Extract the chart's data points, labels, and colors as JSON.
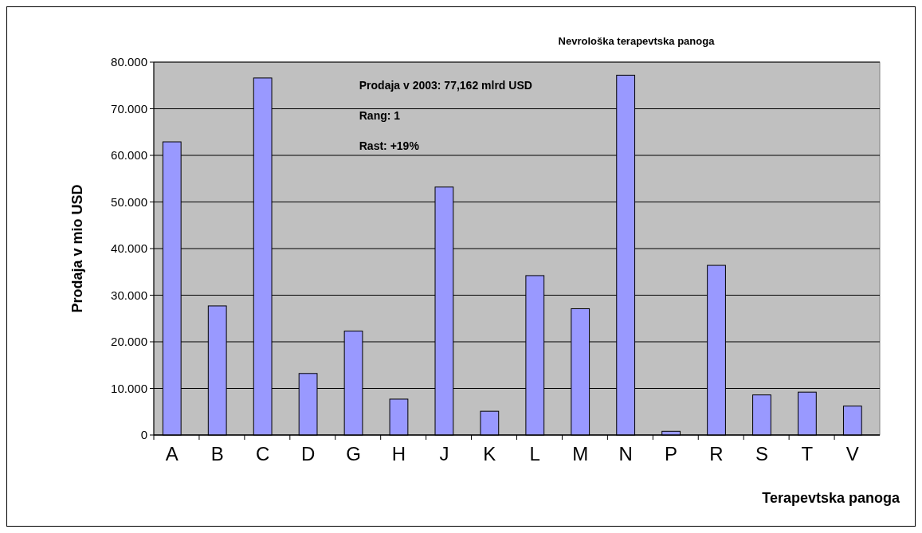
{
  "chart_data": {
    "type": "bar",
    "title": "Nevrološka terapevtska panoga",
    "xlabel": "Terapevtska panoga",
    "ylabel": "Prodaja v mio USD",
    "annotations": [
      "Prodaja v 2003: 77,162 mlrd USD",
      "Rang: 1",
      "Rast: +19%"
    ],
    "categories": [
      "A",
      "B",
      "C",
      "D",
      "G",
      "H",
      "J",
      "K",
      "L",
      "M",
      "N",
      "P",
      "R",
      "S",
      "T",
      "V"
    ],
    "values": [
      62900,
      27700,
      76600,
      13200,
      22300,
      7700,
      53200,
      5100,
      34200,
      27100,
      77200,
      800,
      36400,
      8600,
      9200,
      6200
    ],
    "color": "#9999ff",
    "ylim": [
      0,
      80000
    ],
    "yticks": [
      {
        "value": 0,
        "label": "0"
      },
      {
        "value": 10000,
        "label": "10.000"
      },
      {
        "value": 20000,
        "label": "20.000"
      },
      {
        "value": 30000,
        "label": "30.000"
      },
      {
        "value": 40000,
        "label": "40.000"
      },
      {
        "value": 50000,
        "label": "50.000"
      },
      {
        "value": 60000,
        "label": "60.000"
      },
      {
        "value": 70000,
        "label": "70.000"
      },
      {
        "value": 80000,
        "label": "80.000"
      }
    ],
    "grid": "y"
  }
}
